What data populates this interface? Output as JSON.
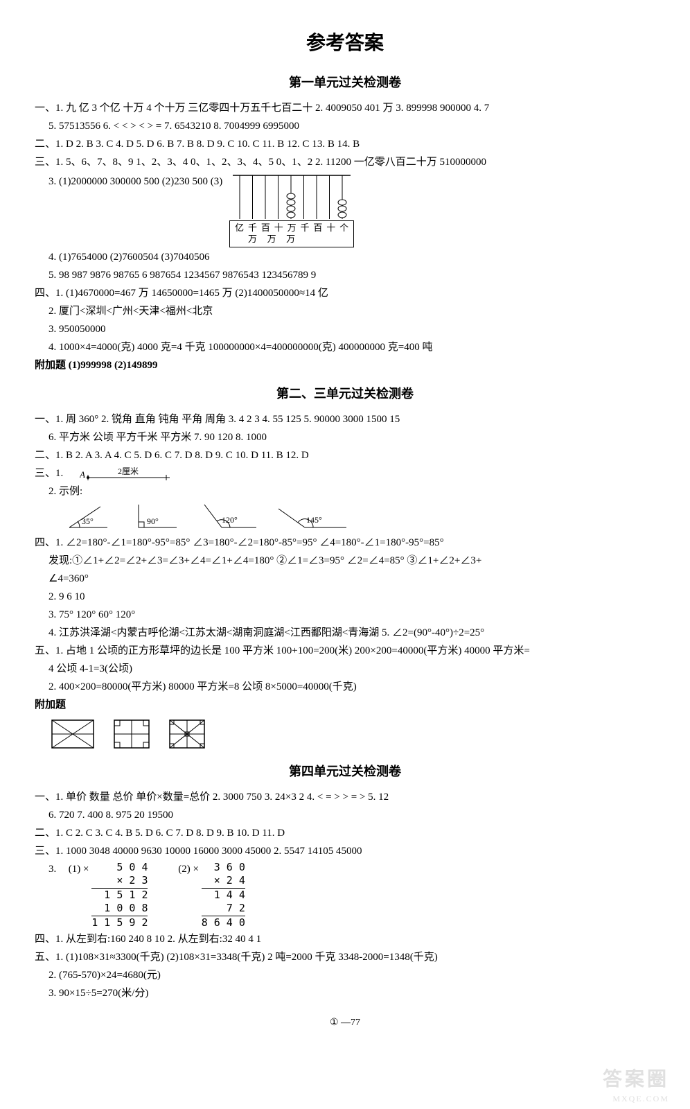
{
  "title": "参考答案",
  "page_number": "77",
  "page_prefix": "①",
  "watermark_main": "答案圈",
  "watermark_sub": "MXQE.COM",
  "sections": [
    {
      "title": "第一单元过关检测卷",
      "lines": [
        "一、1. 九  亿   3 个亿   十万   4 个十万   三亿零四十万五千七百二十     2. 4009050   401 万     3. 899998   900000    4. 7",
        "  5. 57513556     6. <   <   >     <   >   =     7. 6543210    8. 7004999    6995000",
        "二、1. D    2. B    3. C    4. D    5. D    6. B    7. B    8. D    9. C    10. C    11. B    12. C    13. B    14. B",
        "三、1. 5、6、7、8、9   1、2、3、4   0、1、2、3、4、5   0、1、2     2. 11200   一亿零八百二十万   510000000",
        "  3. (1)2000000   300000   500   (2)230   500   (3)",
        "  4. (1)7654000   (2)7600504   (3)7040506",
        "  5. 98   987   9876    98765    6   987654    1234567   9876543    123456789   9",
        "四、1. (1)4670000=467 万   14650000=1465 万    (2)1400050000≈14 亿",
        "  2. 厦门<深圳<广州<天津<福州<北京",
        "  3. 950050000",
        "  4. 1000×4=4000(克)   4000 克=4 千克   100000000×4=400000000(克)   400000000 克=400 吨",
        "附加题   (1)999998    (2)149899"
      ],
      "abacus": {
        "rod_beads": [
          0,
          0,
          0,
          0,
          4,
          0,
          0,
          0,
          3
        ],
        "labels_top": [
          "亿",
          "千",
          "百",
          "十",
          "万",
          "千",
          "百",
          "十",
          "个"
        ],
        "labels_bot": [
          "",
          "万",
          "万",
          "万",
          "",
          "",
          "",
          "",
          ""
        ]
      }
    },
    {
      "title": "第二、三单元过关检测卷",
      "lines": [
        "一、1. 周  360°    2. 锐角   直角   钝角   平角   周角     3. 4   2   3    4. 55   125    5. 90000   3000   1500   15",
        "  6. 平方米   公顷   平方千米   平方米    7. 90   120    8. 1000",
        "二、1. B    2. A    3. A    4. C    5. D    6. C    7. D    8. D    9. C    10. D    11. B    12. D",
        "三、1. ",
        "  2. 示例:",
        "四、1. ∠2=180°-∠1=180°-95°=85°   ∠3=180°-∠2=180°-85°=95°   ∠4=180°-∠1=180°-95°=85°",
        "  发现:①∠1+∠2=∠2+∠3=∠3+∠4=∠1+∠4=180°   ②∠1=∠3=95°   ∠2=∠4=85°   ③∠1+∠2+∠3+",
        "  ∠4=360°",
        "  2. 9   6   10",
        "  3. 75°   120°   60°   120°",
        "  4. 江苏洪泽湖<内蒙古呼伦湖<江苏太湖<湖南洞庭湖<江西鄱阳湖<青海湖    5. ∠2=(90°-40°)÷2=25°",
        "五、1. 占地 1 公顷的正方形草坪的边长是 100 平方米   100+100=200(米)   200×200=40000(平方米)   40000 平方米=",
        "  4 公顷   4-1=3(公顷)",
        "  2. 400×200=80000(平方米)   80000 平方米=8 公顷   8×5000=40000(千克)",
        "附加题"
      ],
      "segment_label": "2厘米",
      "angles": [
        "35°",
        "90°",
        "120°",
        "145°"
      ]
    },
    {
      "title": "第四单元过关检测卷",
      "lines": [
        "一、1. 单价   数量   总价   单价×数量=总价    2. 3000   750    3. 24×3   2    4. <   =   >    >   =   >    5. 12",
        "  6. 720    7. 400    8. 975   20   19500",
        "二、1. C    2. C    3. C    4. B    5. D    6. C    7. D    8. D    9. B    10. D    11. D",
        "三、1. 1000   3048   40000   9630    10000   16000   3000   45000    2. 5547   14105   45000",
        "  3. ",
        "四、1. 从左到右:160   240   8   10    2. 从左到右:32   40   4   1",
        "五、1. (1)108×31≈3300(千克)   (2)108×31=3348(千克)   2 吨=2000 千克   3348-2000=1348(千克)",
        "  2. (765-570)×24=4680(元)",
        "  3. 90×15÷5=270(米/分)"
      ],
      "calc1": {
        "label": "(1) ×",
        "rows": [
          "5 0 4",
          "×   2 3",
          "1 5 1 2",
          "1 0 0 8 ",
          "1 1 5 9 2"
        ]
      },
      "calc2": {
        "label": "(2) ×",
        "rows": [
          "3 6 0",
          "× 2 4",
          "1 4 4",
          "7 2  ",
          "8 6 4 0"
        ]
      }
    }
  ]
}
